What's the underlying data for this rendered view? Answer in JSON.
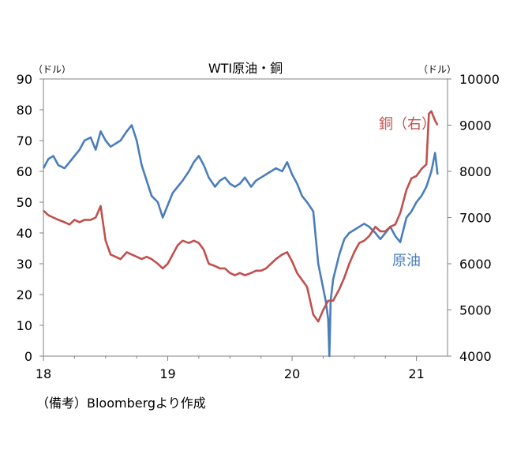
{
  "chart_data": {
    "type": "line",
    "title": "WTI原油・銅",
    "left_unit": "（ドル）",
    "right_unit": "（ドル）",
    "x_ticks": [
      "18",
      "19",
      "20",
      "21"
    ],
    "x_range": [
      2018.0,
      2021.25
    ],
    "y_left": {
      "range": [
        0,
        90
      ],
      "ticks": [
        0,
        10,
        20,
        30,
        40,
        50,
        60,
        70,
        80,
        90
      ]
    },
    "y_right": {
      "range": [
        4000,
        10000
      ],
      "ticks": [
        4000,
        5000,
        6000,
        7000,
        8000,
        9000,
        10000
      ]
    },
    "note": "（備考）Bloombergより作成",
    "series": [
      {
        "name": "原油",
        "axis": "left",
        "color": "#4a7ebb",
        "x": [
          2018.0,
          2018.04,
          2018.08,
          2018.12,
          2018.17,
          2018.21,
          2018.25,
          2018.29,
          2018.33,
          2018.38,
          2018.42,
          2018.46,
          2018.5,
          2018.54,
          2018.58,
          2018.62,
          2018.67,
          2018.71,
          2018.75,
          2018.79,
          2018.83,
          2018.87,
          2018.92,
          2018.96,
          2019.0,
          2019.04,
          2019.08,
          2019.12,
          2019.17,
          2019.21,
          2019.25,
          2019.29,
          2019.33,
          2019.38,
          2019.42,
          2019.46,
          2019.5,
          2019.54,
          2019.58,
          2019.62,
          2019.67,
          2019.71,
          2019.75,
          2019.79,
          2019.83,
          2019.87,
          2019.92,
          2019.96,
          2020.0,
          2020.04,
          2020.08,
          2020.12,
          2020.17,
          2020.21,
          2020.25,
          2020.27,
          2020.29,
          2020.3,
          2020.31,
          2020.33,
          2020.38,
          2020.42,
          2020.46,
          2020.5,
          2020.54,
          2020.58,
          2020.62,
          2020.67,
          2020.71,
          2020.75,
          2020.79,
          2020.83,
          2020.87,
          2020.92,
          2020.96,
          2021.0,
          2021.04,
          2021.08,
          2021.12,
          2021.15,
          2021.17
        ],
        "values": [
          61,
          64,
          65,
          62,
          61,
          63,
          65,
          67,
          70,
          71,
          67,
          73,
          70,
          68,
          69,
          70,
          73,
          75,
          70,
          62,
          57,
          52,
          50,
          45,
          49,
          53,
          55,
          57,
          60,
          63,
          65,
          62,
          58,
          55,
          57,
          58,
          56,
          55,
          56,
          58,
          55,
          57,
          58,
          59,
          60,
          61,
          60,
          63,
          59,
          56,
          52,
          50,
          47,
          30,
          22,
          18,
          12,
          0,
          18,
          25,
          33,
          38,
          40,
          41,
          42,
          43,
          42,
          40,
          38,
          40,
          42,
          39,
          37,
          45,
          47,
          50,
          52,
          55,
          60,
          66,
          59
        ]
      },
      {
        "name": "銅（右）",
        "axis": "right",
        "color": "#c0504d",
        "x": [
          2018.0,
          2018.04,
          2018.08,
          2018.12,
          2018.17,
          2018.21,
          2018.25,
          2018.29,
          2018.33,
          2018.38,
          2018.42,
          2018.46,
          2018.5,
          2018.54,
          2018.58,
          2018.62,
          2018.67,
          2018.71,
          2018.75,
          2018.79,
          2018.83,
          2018.87,
          2018.92,
          2018.96,
          2019.0,
          2019.04,
          2019.08,
          2019.12,
          2019.17,
          2019.21,
          2019.25,
          2019.29,
          2019.33,
          2019.38,
          2019.42,
          2019.46,
          2019.5,
          2019.54,
          2019.58,
          2019.62,
          2019.67,
          2019.71,
          2019.75,
          2019.79,
          2019.83,
          2019.87,
          2019.92,
          2019.96,
          2020.0,
          2020.04,
          2020.08,
          2020.12,
          2020.17,
          2020.21,
          2020.25,
          2020.29,
          2020.33,
          2020.38,
          2020.42,
          2020.46,
          2020.5,
          2020.54,
          2020.58,
          2020.62,
          2020.67,
          2020.71,
          2020.75,
          2020.79,
          2020.83,
          2020.87,
          2020.92,
          2020.96,
          2021.0,
          2021.04,
          2021.08,
          2021.1,
          2021.12,
          2021.15,
          2021.17
        ],
        "values": [
          7150,
          7050,
          7000,
          6950,
          6900,
          6850,
          6950,
          6900,
          6950,
          6950,
          7000,
          7250,
          6500,
          6200,
          6150,
          6100,
          6250,
          6200,
          6150,
          6100,
          6150,
          6100,
          6000,
          5900,
          6000,
          6200,
          6400,
          6500,
          6450,
          6500,
          6450,
          6300,
          6000,
          5950,
          5900,
          5900,
          5800,
          5750,
          5800,
          5750,
          5800,
          5850,
          5850,
          5900,
          6000,
          6100,
          6200,
          6250,
          6050,
          5800,
          5650,
          5500,
          4900,
          4750,
          5000,
          5200,
          5200,
          5450,
          5700,
          6000,
          6250,
          6450,
          6500,
          6600,
          6800,
          6700,
          6700,
          6800,
          6850,
          7100,
          7600,
          7850,
          7900,
          8050,
          8150,
          9250,
          9300,
          9100,
          9000
        ]
      }
    ]
  }
}
